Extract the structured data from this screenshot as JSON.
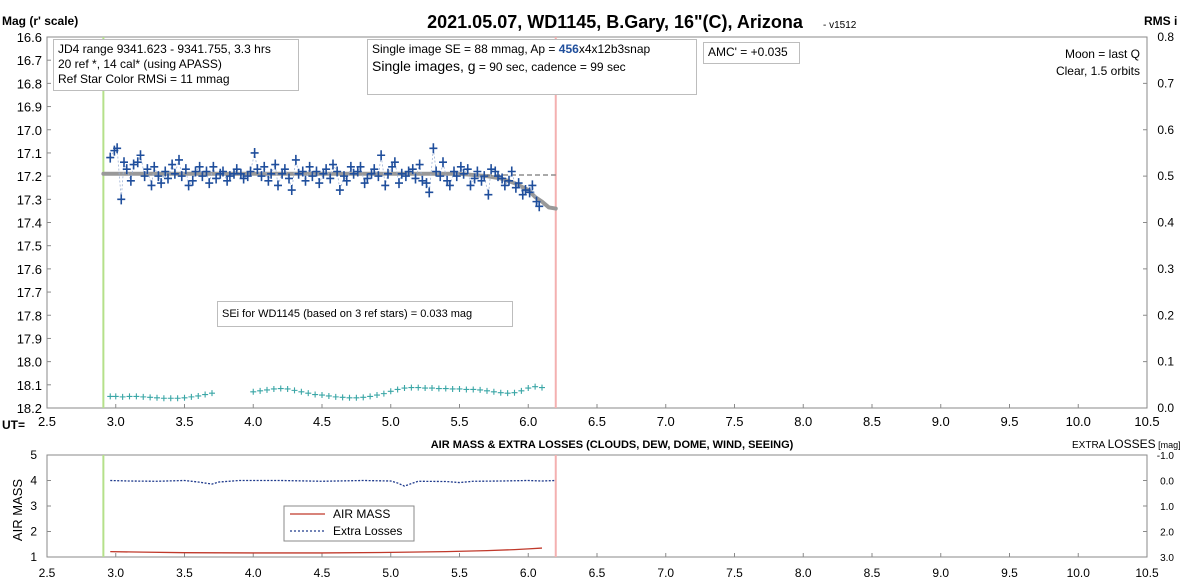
{
  "chart_data": [
    {
      "type": "scatter",
      "title": "2021.05.07, WD1145, B.Gary, 16\"(C), Arizona",
      "version": "- v1512",
      "ylabel": "Mag (r' scale)",
      "y2label": "RMS i",
      "xlabel": "UT=",
      "xlim": [
        2.5,
        10.5
      ],
      "ylim": [
        16.6,
        18.2
      ],
      "y2lim": [
        0.0,
        0.8
      ],
      "x_ticks": [
        "2.5",
        "3.0",
        "3.5",
        "4.0",
        "4.5",
        "5.0",
        "5.5",
        "6.0",
        "6.5",
        "7.0",
        "7.5",
        "8.0",
        "8.5",
        "9.0",
        "9.5",
        "10.0",
        "10.5"
      ],
      "y_ticks": [
        "16.6",
        "16.7",
        "16.8",
        "16.9",
        "17.0",
        "17.1",
        "17.2",
        "17.3",
        "17.4",
        "17.5",
        "17.6",
        "17.7",
        "17.8",
        "17.9",
        "18.0",
        "18.1",
        "18.2"
      ],
      "y2_ticks": [
        "0.8",
        "0.7",
        "0.6",
        "0.5",
        "0.4",
        "0.3",
        "0.2",
        "0.1",
        "0.0"
      ],
      "grid": false,
      "vertical_markers": [
        {
          "name": "start",
          "x": 2.91,
          "color": "#b5e08a"
        },
        {
          "name": "end",
          "x": 6.2,
          "color": "#f4b0b0"
        }
      ],
      "series": [
        {
          "name": "magnitudes",
          "color": "#1f4e9c",
          "marker": "plus",
          "x": [
            2.96,
            2.99,
            3.01,
            3.04,
            3.06,
            3.08,
            3.11,
            3.13,
            3.16,
            3.18,
            3.21,
            3.23,
            3.26,
            3.28,
            3.31,
            3.33,
            3.36,
            3.38,
            3.41,
            3.43,
            3.46,
            3.48,
            3.51,
            3.53,
            3.56,
            3.58,
            3.61,
            3.63,
            3.66,
            3.68,
            3.71,
            3.73,
            3.76,
            3.78,
            3.81,
            3.83,
            3.86,
            3.88,
            3.91,
            3.93,
            3.96,
            3.98,
            4.01,
            4.03,
            4.06,
            4.08,
            4.11,
            4.13,
            4.16,
            4.18,
            4.21,
            4.23,
            4.26,
            4.28,
            4.31,
            4.33,
            4.36,
            4.38,
            4.41,
            4.43,
            4.46,
            4.48,
            4.51,
            4.53,
            4.56,
            4.58,
            4.61,
            4.63,
            4.66,
            4.68,
            4.71,
            4.73,
            4.76,
            4.78,
            4.81,
            4.83,
            4.86,
            4.88,
            4.91,
            4.93,
            4.96,
            4.98,
            5.01,
            5.03,
            5.06,
            5.08,
            5.11,
            5.13,
            5.16,
            5.18,
            5.21,
            5.23,
            5.26,
            5.28,
            5.31,
            5.33,
            5.36,
            5.38,
            5.41,
            5.43,
            5.46,
            5.48,
            5.51,
            5.53,
            5.56,
            5.58,
            5.61,
            5.63,
            5.66,
            5.68,
            5.71,
            5.73,
            5.76,
            5.78,
            5.81,
            5.83,
            5.86,
            5.88,
            5.91,
            5.93,
            5.96,
            5.98,
            6.01,
            6.03,
            6.06,
            6.08
          ],
          "y": [
            17.12,
            17.09,
            17.08,
            17.3,
            17.14,
            17.17,
            17.22,
            17.15,
            17.14,
            17.11,
            17.2,
            17.17,
            17.24,
            17.16,
            17.2,
            17.23,
            17.18,
            17.21,
            17.15,
            17.19,
            17.13,
            17.2,
            17.17,
            17.24,
            17.22,
            17.18,
            17.16,
            17.2,
            17.18,
            17.23,
            17.16,
            17.21,
            17.19,
            17.18,
            17.22,
            17.2,
            17.19,
            17.17,
            17.19,
            17.21,
            17.2,
            17.18,
            17.1,
            17.17,
            17.2,
            17.16,
            17.22,
            17.19,
            17.15,
            17.24,
            17.19,
            17.17,
            17.21,
            17.26,
            17.13,
            17.19,
            17.18,
            17.22,
            17.16,
            17.2,
            17.18,
            17.23,
            17.19,
            17.17,
            17.21,
            17.15,
            17.18,
            17.26,
            17.2,
            17.22,
            17.16,
            17.19,
            17.18,
            17.16,
            17.23,
            17.21,
            17.19,
            17.17,
            17.2,
            17.11,
            17.24,
            17.19,
            17.16,
            17.14,
            17.23,
            17.19,
            17.2,
            17.18,
            17.17,
            17.21,
            17.15,
            17.22,
            17.23,
            17.27,
            17.08,
            17.18,
            17.2,
            17.14,
            17.22,
            17.24,
            17.18,
            17.2,
            17.16,
            17.19,
            17.17,
            17.24,
            17.21,
            17.18,
            17.22,
            17.2,
            17.28,
            17.17,
            17.18,
            17.2,
            17.21,
            17.24,
            17.22,
            17.18,
            17.25,
            17.23,
            17.28,
            17.26,
            17.27,
            17.24,
            17.31,
            17.33
          ]
        },
        {
          "name": "model fit",
          "color": "#999999",
          "marker": "line",
          "x": [
            2.91,
            3.5,
            4.0,
            4.5,
            5.0,
            5.5,
            5.7,
            5.8,
            5.9,
            6.0,
            6.05,
            6.1,
            6.15,
            6.2
          ],
          "y": [
            17.19,
            17.19,
            17.19,
            17.19,
            17.19,
            17.19,
            17.2,
            17.21,
            17.23,
            17.26,
            17.29,
            17.31,
            17.335,
            17.34
          ]
        },
        {
          "name": "RMS i",
          "color": "#3aa6a6",
          "marker": "plus",
          "axis": "right",
          "x": [
            2.96,
            3.0,
            3.05,
            3.1,
            3.15,
            3.2,
            3.25,
            3.3,
            3.35,
            3.4,
            3.45,
            3.5,
            3.55,
            3.6,
            3.65,
            3.7,
            4.0,
            4.05,
            4.1,
            4.15,
            4.2,
            4.25,
            4.3,
            4.35,
            4.4,
            4.45,
            4.5,
            4.55,
            4.6,
            4.65,
            4.7,
            4.75,
            4.8,
            4.85,
            4.9,
            4.95,
            5.0,
            5.05,
            5.1,
            5.15,
            5.2,
            5.25,
            5.3,
            5.35,
            5.4,
            5.45,
            5.5,
            5.55,
            5.6,
            5.65,
            5.7,
            5.75,
            5.8,
            5.85,
            5.9,
            5.95,
            6.0,
            6.05,
            6.1
          ],
          "y": [
            0.025,
            0.025,
            0.024,
            0.025,
            0.025,
            0.024,
            0.023,
            0.022,
            0.021,
            0.021,
            0.021,
            0.022,
            0.024,
            0.026,
            0.029,
            0.032,
            0.035,
            0.037,
            0.039,
            0.041,
            0.042,
            0.041,
            0.038,
            0.035,
            0.032,
            0.029,
            0.028,
            0.026,
            0.024,
            0.023,
            0.022,
            0.022,
            0.023,
            0.025,
            0.028,
            0.031,
            0.036,
            0.04,
            0.043,
            0.044,
            0.044,
            0.043,
            0.043,
            0.042,
            0.042,
            0.041,
            0.041,
            0.04,
            0.04,
            0.039,
            0.037,
            0.035,
            0.033,
            0.032,
            0.033,
            0.037,
            0.043,
            0.046,
            0.044
          ]
        }
      ],
      "annotations": {
        "info_box": {
          "line1": "JD4 range 9341.623 - 9341.755, 3.3 hrs",
          "line2": "20 ref *, 14 cal* (using APASS)",
          "line3": "Ref Star Color RMSi = 11 mmag"
        },
        "se_box": {
          "line1_prefix": "Single image SE = 88 mmag, Ap = ",
          "line1_ap": "456",
          "line1_suffix": "x4x12b3snap",
          "line2_a": "Single images, ",
          "line2_b": "g",
          "line2_c": " = 90 sec, cadence = 99 sec"
        },
        "amc": "AMC' = +0.035",
        "moon_line1": "Moon = last Q",
        "moon_line2": "Clear, 1.5 orbits",
        "sei": "SEi for WD1145 (based on 3 ref stars) = 0.033 mag"
      }
    },
    {
      "type": "line",
      "title": "AIR MASS & EXTRA LOSSES (CLOUDS, DEW, DOME, WIND, SEEING)",
      "ylabel": "AIR MASS",
      "y2label_small": "EXTRA ",
      "y2label_big": "LOSSES",
      "y2label_unit": " [mag]",
      "xlim": [
        2.5,
        10.5
      ],
      "ylim": [
        1,
        5
      ],
      "y2lim": [
        -1.0,
        3.0
      ],
      "x_ticks": [
        "2.5",
        "3.0",
        "3.5",
        "4.0",
        "4.5",
        "5.0",
        "5.5",
        "6.0",
        "6.5",
        "7.0",
        "7.5",
        "8.0",
        "8.5",
        "9.0",
        "9.5",
        "10.0",
        "10.5"
      ],
      "y_ticks": [
        "5",
        "4",
        "3",
        "2",
        "1"
      ],
      "y2_ticks": [
        "-1.0",
        "0.0",
        "1.0",
        "2.0",
        "3.0"
      ],
      "legend": {
        "placement": "bottom-center",
        "air_mass": "AIR MASS",
        "extra_losses": "Extra Losses"
      },
      "series": [
        {
          "name": "AIR MASS",
          "color": "#c0392b",
          "x": [
            2.96,
            3.2,
            3.5,
            4.0,
            4.5,
            5.0,
            5.4,
            5.7,
            5.9,
            6.0,
            6.1
          ],
          "y": [
            1.21,
            1.19,
            1.17,
            1.16,
            1.16,
            1.18,
            1.21,
            1.25,
            1.29,
            1.32,
            1.35
          ]
        },
        {
          "name": "Extra Losses",
          "color": "#1f3a8c",
          "axis": "right",
          "x": [
            2.96,
            3.1,
            3.3,
            3.5,
            3.6,
            3.65,
            3.7,
            3.75,
            3.9,
            4.2,
            4.5,
            4.8,
            5.0,
            5.05,
            5.1,
            5.15,
            5.2,
            5.4,
            5.5,
            5.6,
            5.8,
            6.0,
            6.1,
            6.2
          ],
          "y": [
            0.0,
            0.02,
            0.03,
            0.0,
            0.06,
            0.1,
            0.14,
            0.06,
            0.0,
            0.0,
            0.03,
            0.0,
            0.02,
            0.1,
            0.22,
            0.12,
            0.03,
            0.04,
            0.08,
            0.03,
            0.02,
            0.0,
            0.02,
            0.0
          ]
        }
      ],
      "vertical_markers": [
        {
          "name": "start",
          "x": 2.91,
          "color": "#b5e08a"
        },
        {
          "name": "end",
          "x": 6.2,
          "color": "#f4b0b0"
        }
      ]
    }
  ]
}
